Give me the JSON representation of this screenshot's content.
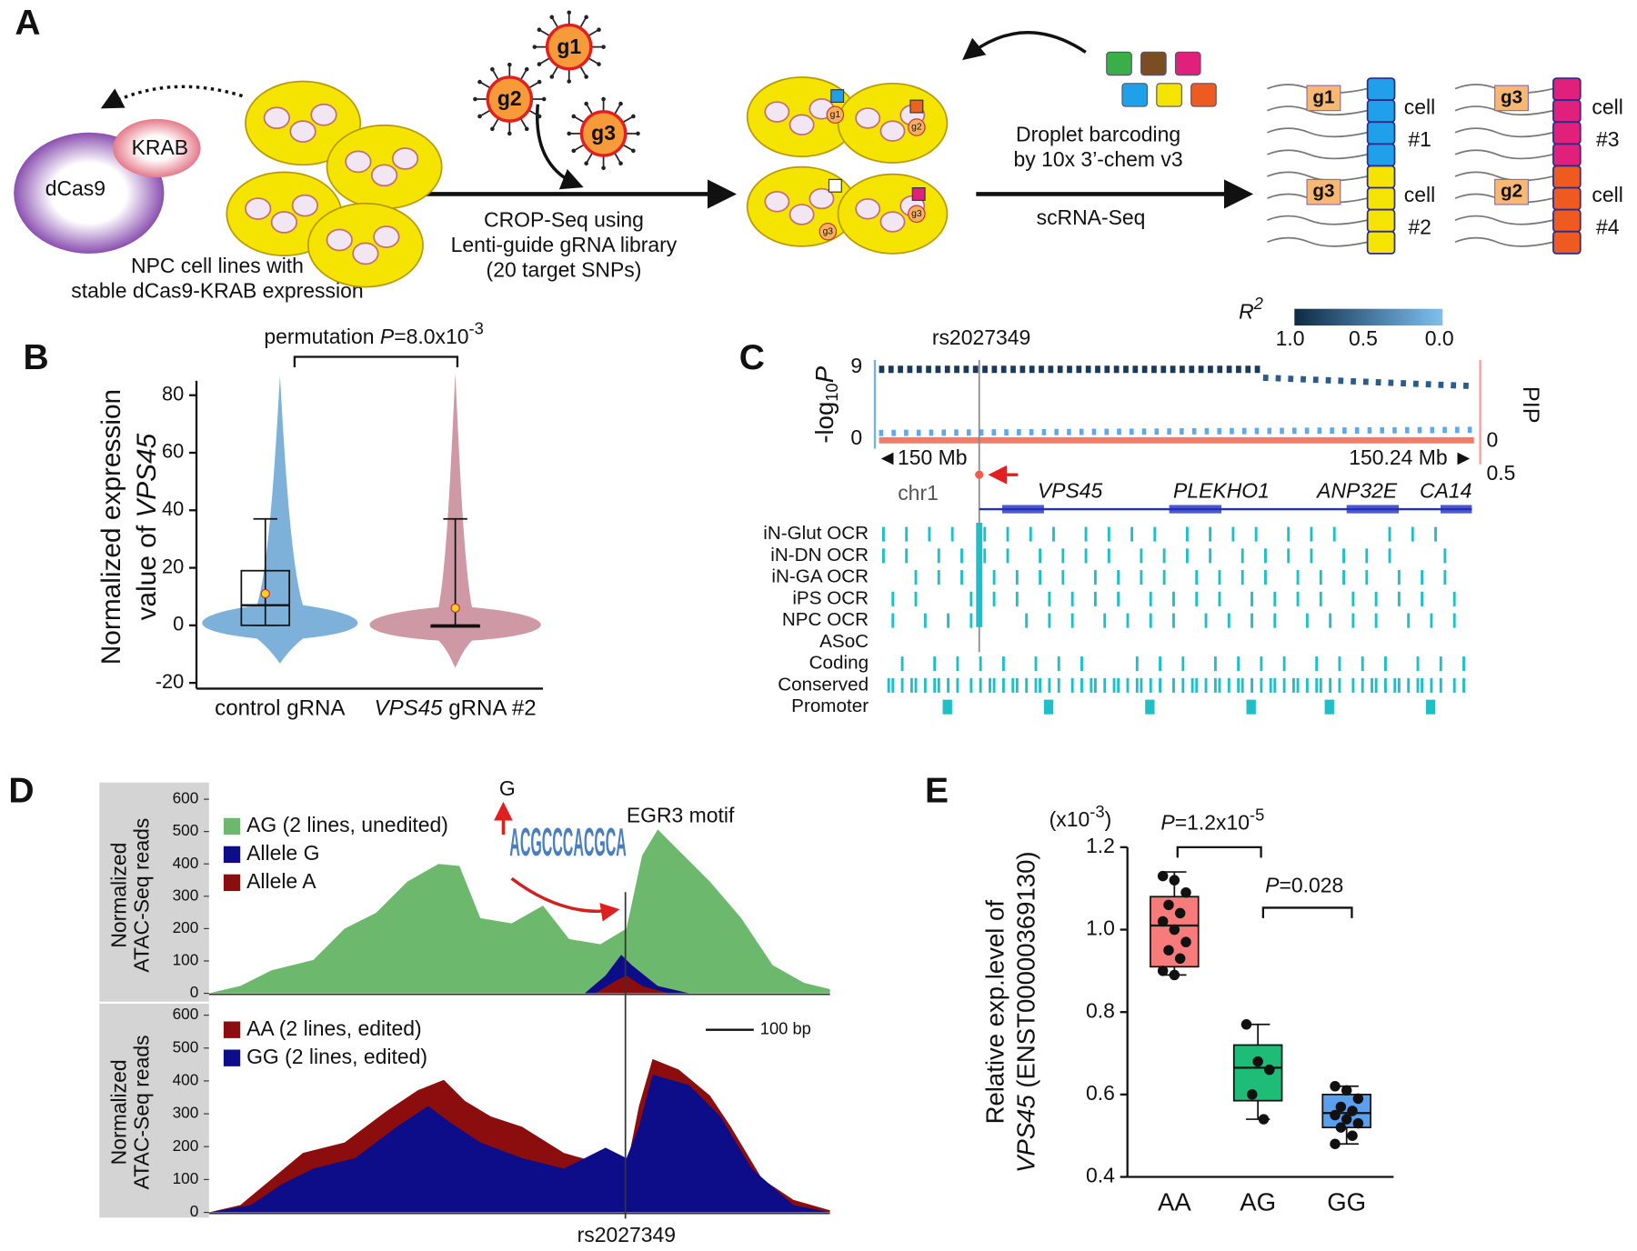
{
  "a": {
    "label": "A",
    "krab": "KRAB",
    "dcas9": "dCas9",
    "npc_caption": [
      "NPC cell lines with",
      "stable dCas9-KRAB expression"
    ],
    "guides": [
      "g1",
      "g2",
      "g3"
    ],
    "crop": [
      "CROP-Seq using",
      "Lenti-guide gRNA library",
      "(20 target SNPs)"
    ],
    "infected_guides": [
      "g1",
      "g2",
      "g3",
      "g3"
    ],
    "droplet": [
      "Droplet barcoding",
      "by 10x 3’-chem v3"
    ],
    "scrna": "scRNA-Seq",
    "cells": [
      {
        "guide": "g1",
        "label": [
          "cell",
          "#1"
        ]
      },
      {
        "guide": "g3",
        "label": [
          "cell",
          "#2"
        ]
      },
      {
        "guide": "g3",
        "label": [
          "cell",
          "#3"
        ]
      },
      {
        "guide": "g2",
        "label": [
          "cell",
          "#4"
        ]
      }
    ]
  },
  "b": {
    "label": "B",
    "annotation": [
      "permutation ",
      "P",
      "=8.0x10",
      "-3"
    ],
    "ylabel": [
      "Normalized expression",
      "value of ",
      "VPS45"
    ],
    "chart": {
      "type": "box",
      "ylim": [
        -22,
        85
      ],
      "yticks": [
        -20,
        0,
        20,
        40,
        60,
        80
      ],
      "categories": [
        [
          "control gRNA"
        ],
        [
          "VPS45",
          " gRNA #2"
        ]
      ],
      "colors": [
        "#6fa9d6",
        "#c98d9b"
      ],
      "boxes": [
        {
          "whisker_low": 0,
          "q1": 0,
          "median": 7,
          "q3": 19,
          "whisker_high": 37,
          "mean": 11
        },
        {
          "whisker_low": 0,
          "q1": 0,
          "median": 0,
          "q3": 0,
          "whisker_high": 37,
          "mean": 6
        }
      ]
    }
  },
  "c": {
    "label": "C",
    "snp": "rs2027349",
    "r2": [
      "R",
      "2"
    ],
    "r2_ticks": [
      "1.0",
      "0.5",
      "0.0"
    ],
    "ylabel": [
      "-log",
      "10",
      "P"
    ],
    "yticks": [
      "9",
      "0"
    ],
    "pip": "PIP",
    "pip_ticks": [
      "0",
      "0.5"
    ],
    "left_pos": "◄150 Mb",
    "right_pos": "150.24 Mb ►",
    "chrom": "chr1",
    "genes": [
      "VPS45",
      "PLEKHO1",
      "ANP32E",
      "CA14"
    ],
    "tracks": [
      "iN-Glut OCR",
      "iN-DN OCR",
      "iN-GA OCR",
      "iPS OCR",
      "NPC OCR",
      "ASoC",
      "Coding",
      "Conserved",
      "Promoter"
    ]
  },
  "d": {
    "label": "D",
    "ylabel": [
      "Normalized",
      "ATAC-Seq reads"
    ],
    "yticks": [
      0,
      100,
      200,
      300,
      400,
      500,
      600
    ],
    "top_legend": [
      {
        "name": "AG (2 lines, unedited)",
        "color": "#6cb86c"
      },
      {
        "name": "Allele G",
        "color": "#0d0d8a"
      },
      {
        "name": "Allele A",
        "color": "#8b0d0d"
      }
    ],
    "bottom_legend": [
      {
        "name": "AA (2 lines, edited)",
        "color": "#8b0d0d"
      },
      {
        "name": "GG (2 lines, edited)",
        "color": "#0d0d8a"
      }
    ],
    "motif_allele": "G",
    "motif_logo": "ACGCCCACGCA",
    "motif": "EGR3 motif",
    "scale": "100 bp",
    "snp": "rs2027349"
  },
  "e": {
    "label": "E",
    "exponent": [
      "(x10",
      "-3",
      ")"
    ],
    "ylabel": [
      "Relative exp.level of",
      "VPS45",
      " (ENST00000369130)"
    ],
    "p1": [
      "P",
      "=1.2x10",
      "-5"
    ],
    "p2": [
      "P",
      "=0.028"
    ],
    "chart": {
      "type": "box",
      "ylim": [
        0.4,
        1.2
      ],
      "yticks": [
        0.4,
        0.6,
        0.8,
        {
          "value": 1,
          "label": "1.0"
        },
        1.2
      ],
      "categories": [
        "AA",
        "AG",
        "GG"
      ],
      "colors": [
        "#f77b7b",
        "#1dbd78",
        "#5aa0ee"
      ],
      "boxes": [
        {
          "whisker_low": 0.89,
          "q1": 0.91,
          "median": 1.01,
          "q3": 1.08,
          "whisker_high": 1.14
        },
        {
          "whisker_low": 0.54,
          "q1": 0.585,
          "median": 0.665,
          "q3": 0.72,
          "whisker_high": 0.77
        },
        {
          "whisker_low": 0.48,
          "q1": 0.52,
          "median": 0.555,
          "q3": 0.6,
          "whisker_high": 0.62
        }
      ],
      "points": [
        [
          1.13,
          1.12,
          1.09,
          1.06,
          1.04,
          1.02,
          1.0,
          0.97,
          0.95,
          0.93,
          0.9,
          0.89
        ],
        [
          0.77,
          0.68,
          0.66,
          0.6,
          0.54
        ],
        [
          0.62,
          0.61,
          0.59,
          0.57,
          0.56,
          0.55,
          0.54,
          0.53,
          0.52,
          0.5,
          0.48
        ]
      ]
    }
  }
}
